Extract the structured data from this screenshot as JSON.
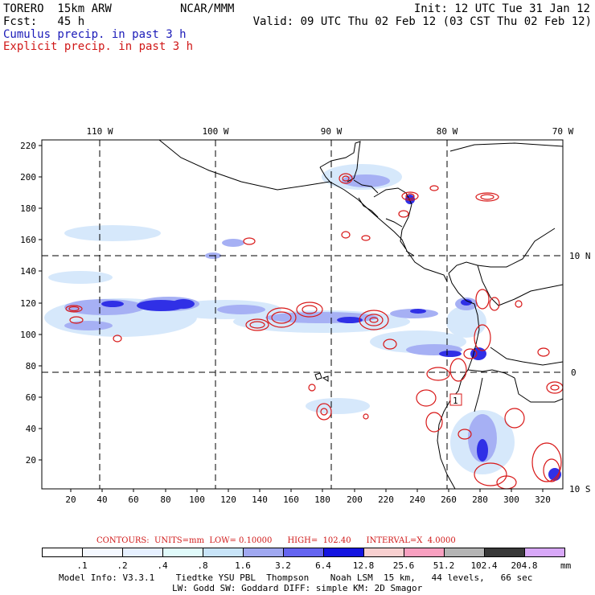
{
  "header": {
    "model": "TORERO  15km ARW",
    "org": "NCAR/MMM",
    "init": "Init: 12 UTC Tue 31 Jan 12",
    "fcst": "Fcst:   45 h",
    "valid": "Valid: 09 UTC Thu 02 Feb 12 (03 CST Thu 02 Feb 12)",
    "cumulus_label": "Cumulus precip. in past 3 h",
    "explicit_label": "Explicit precip. in past 3 h"
  },
  "map": {
    "top_lon_labels": [
      "110 W",
      "100 W",
      "90 W",
      "80 W",
      "70 W"
    ],
    "right_lat_labels": [
      "10 N",
      "0",
      "10 S"
    ],
    "y_ticks": [
      "220",
      "200",
      "180",
      "160",
      "140",
      "120",
      "100",
      "80",
      "60",
      "40",
      "20"
    ],
    "x_ticks": [
      "20",
      "40",
      "60",
      "80",
      "100",
      "120",
      "140",
      "160",
      "180",
      "200",
      "220",
      "240",
      "260",
      "280",
      "300",
      "320"
    ],
    "marker_label": "1"
  },
  "colorbar": {
    "contour_text": "CONTOURS:  UNITS=mm  LOW= 0.10000      HIGH=  102.40      INTERVAL=X  4.0000",
    "levels": [
      ".1",
      ".2",
      ".4",
      ".8",
      "1.6",
      "3.2",
      "6.4",
      "12.8",
      "25.6",
      "51.2",
      "102.4",
      "204.8"
    ],
    "unit": "mm",
    "colors": [
      "#ffffff",
      "#f4f8ff",
      "#e6f0ff",
      "#e0fafa",
      "#c8e4f8",
      "#a0a8f0",
      "#6464f0",
      "#1414e0",
      "#f8d0d0",
      "#f8a0c0",
      "#b4b4b4",
      "#383838",
      "#d8a8f8"
    ]
  },
  "footer": {
    "line1": "Model Info: V3.3.1    Tiedtke YSU PBL  Thompson    Noah LSM  15 km,   44 levels,   66 sec",
    "line2": "LW: Godd SW: Goddard DIFF: simple KM: 2D Smagor"
  },
  "style": {
    "cumulus_blue": "#1a1ab8",
    "explicit_red": "#d01818"
  }
}
